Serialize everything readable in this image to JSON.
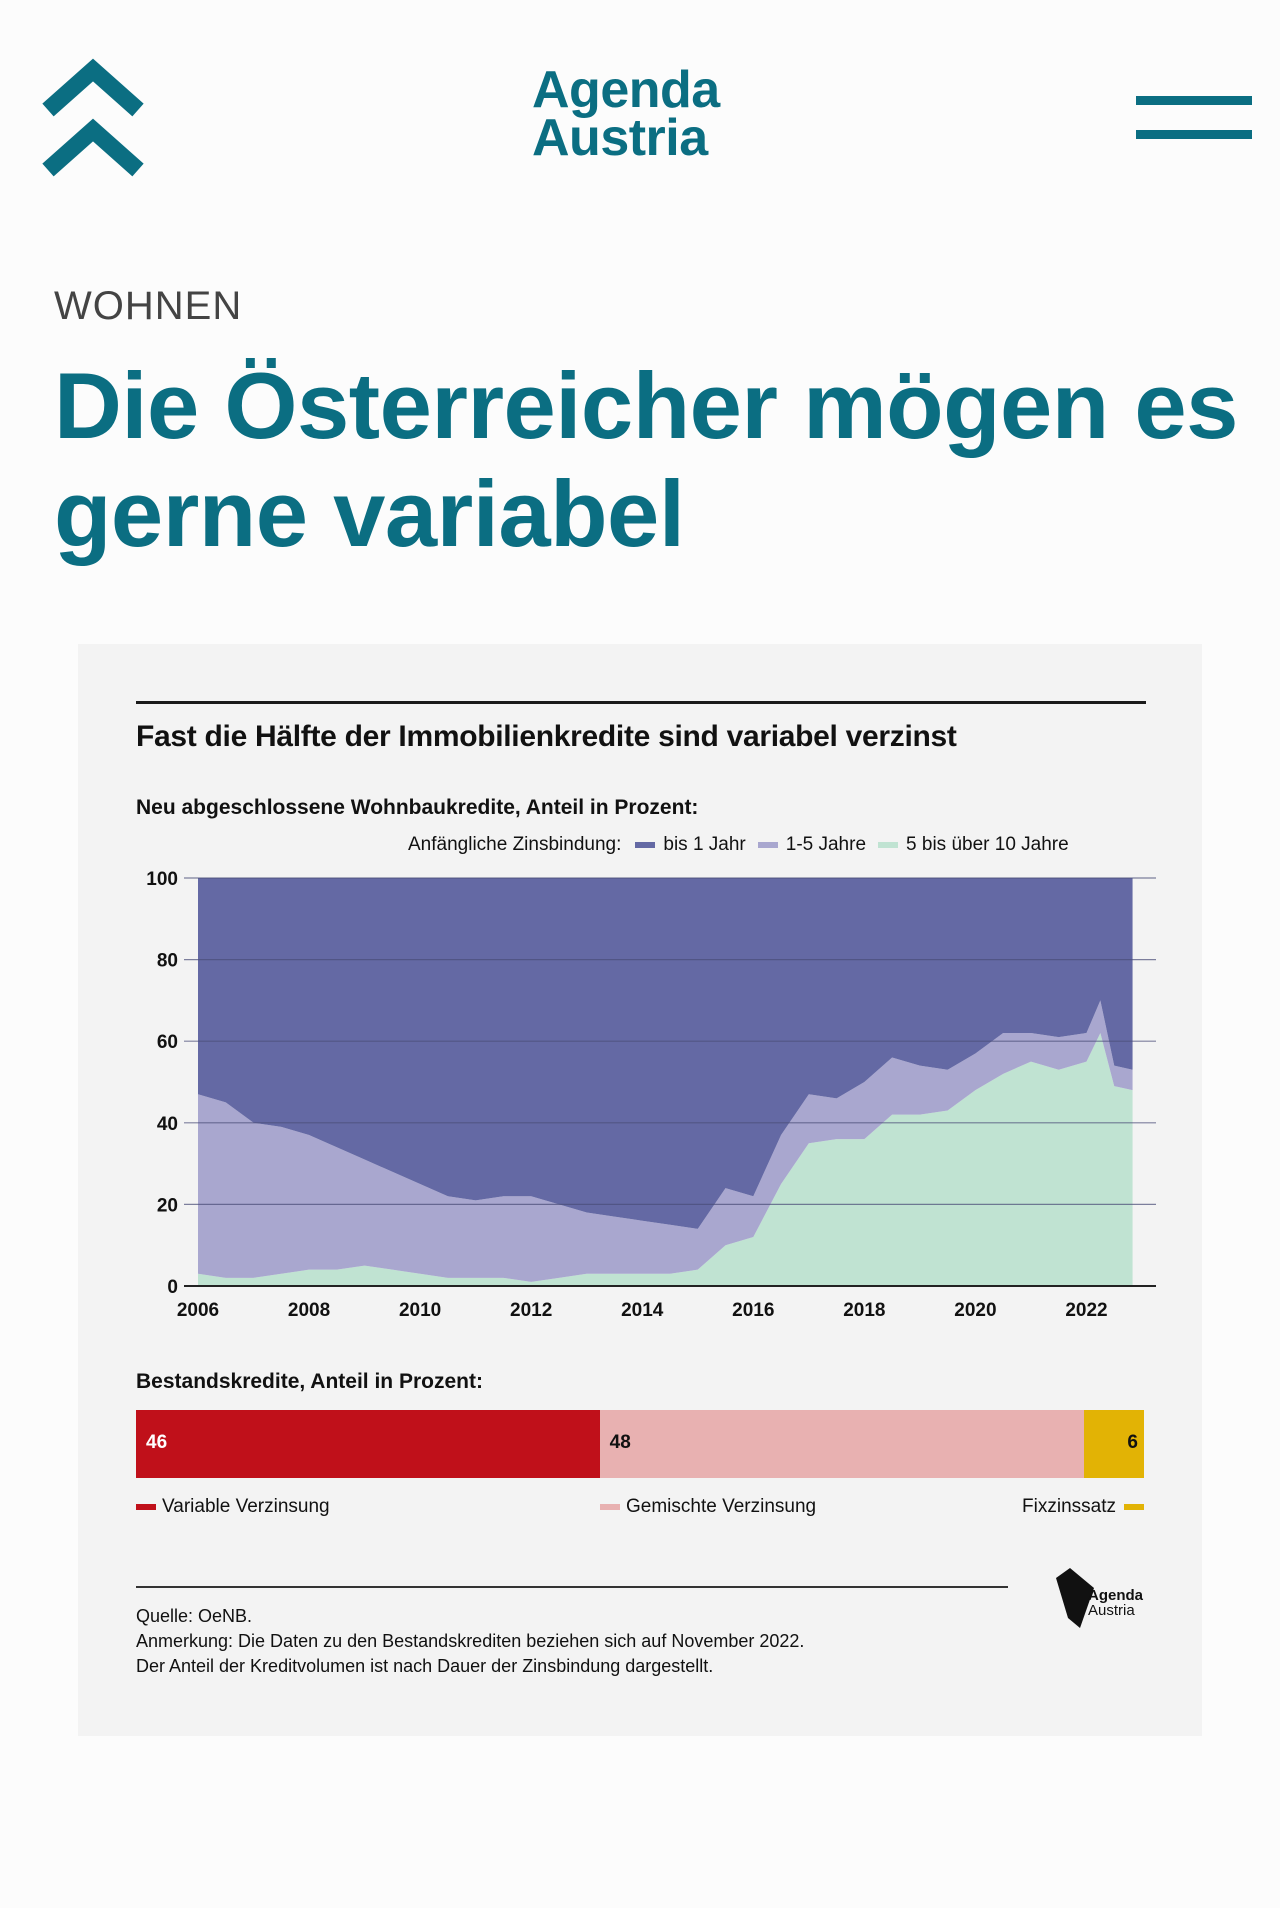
{
  "header": {
    "logo_line1": "Agenda",
    "logo_line2": "Austria"
  },
  "article": {
    "category": "WOHNEN",
    "headline": "Die Österreicher mögen es gerne variabel"
  },
  "infographic": {
    "title": "Fast die Hälfte der Immobilienkredite sind variabel verzinst",
    "subtitle": "Neu abgeschlossene Wohnbaukredite, Anteil in Prozent:",
    "legend_prefix": "Anfängliche Zinsbindung:",
    "stock_title": "Bestandskredite, Anteil in Prozent:",
    "source": "Quelle: OeNB.",
    "note_line1": "Anmerkung: Die Daten zu den Bestandskrediten beziehen sich auf November 2022.",
    "note_line2": "Der Anteil der Kreditvolumen ist nach Dauer der Zinsbindung dargestellt.",
    "brand_line1": "Agenda",
    "brand_line2": "Austria"
  },
  "chart_data": [
    {
      "type": "area",
      "stacked": true,
      "title": "Neu abgeschlossene Wohnbaukredite, Anteil in Prozent:",
      "legend_title": "Anfängliche Zinsbindung:",
      "legend_position": "top-right",
      "x": [
        2006.0,
        2006.5,
        2007.0,
        2007.5,
        2008.0,
        2008.5,
        2009.0,
        2009.5,
        2010.0,
        2010.5,
        2011.0,
        2011.5,
        2012.0,
        2012.5,
        2013.0,
        2013.5,
        2014.0,
        2014.5,
        2015.0,
        2015.5,
        2016.0,
        2016.5,
        2017.0,
        2017.5,
        2018.0,
        2018.5,
        2019.0,
        2019.5,
        2020.0,
        2020.5,
        2021.0,
        2021.5,
        2022.0,
        2022.25,
        2022.5,
        2022.83
      ],
      "series": [
        {
          "name": "5 bis über 10 Jahre",
          "color": "#c0e3d2",
          "values": [
            3,
            2,
            2,
            3,
            4,
            4,
            5,
            4,
            3,
            2,
            2,
            2,
            1,
            2,
            3,
            3,
            3,
            3,
            4,
            10,
            12,
            25,
            35,
            36,
            36,
            42,
            42,
            43,
            48,
            52,
            55,
            53,
            55,
            62,
            49,
            48
          ]
        },
        {
          "name": "1-5 Jahre",
          "color": "#a9a7cf",
          "values": [
            44,
            43,
            38,
            36,
            33,
            30,
            26,
            24,
            22,
            20,
            19,
            20,
            21,
            18,
            15,
            14,
            13,
            12,
            10,
            14,
            10,
            12,
            12,
            10,
            14,
            14,
            12,
            10,
            9,
            10,
            7,
            8,
            7,
            8,
            5,
            5
          ]
        },
        {
          "name": "bis 1 Jahr",
          "color": "#6469a4",
          "values": [
            53,
            55,
            60,
            61,
            63,
            66,
            69,
            72,
            75,
            78,
            79,
            78,
            78,
            80,
            82,
            83,
            84,
            85,
            86,
            76,
            78,
            63,
            53,
            54,
            50,
            44,
            46,
            47,
            43,
            38,
            38,
            39,
            38,
            30,
            46,
            47
          ]
        }
      ],
      "xlim": [
        2006,
        2023
      ],
      "ylim": [
        0,
        100
      ],
      "x_ticks": [
        "2006",
        "2008",
        "2010",
        "2012",
        "2014",
        "2016",
        "2018",
        "2020",
        "2022"
      ],
      "y_ticks": [
        "0",
        "20",
        "40",
        "60",
        "80",
        "100"
      ],
      "grid": true
    },
    {
      "type": "bar",
      "stacked": true,
      "orientation": "horizontal",
      "title": "Bestandskredite, Anteil in Prozent:",
      "series": [
        {
          "name": "Variable Verzinsung",
          "value": 46,
          "label": "46",
          "color": "#c0101a"
        },
        {
          "name": "Gemischte Verzinsung",
          "value": 48,
          "label": "48",
          "color": "#e8b1b1"
        },
        {
          "name": "Fixzinssatz",
          "value": 6,
          "label": "6",
          "color": "#e2b305"
        }
      ]
    }
  ]
}
